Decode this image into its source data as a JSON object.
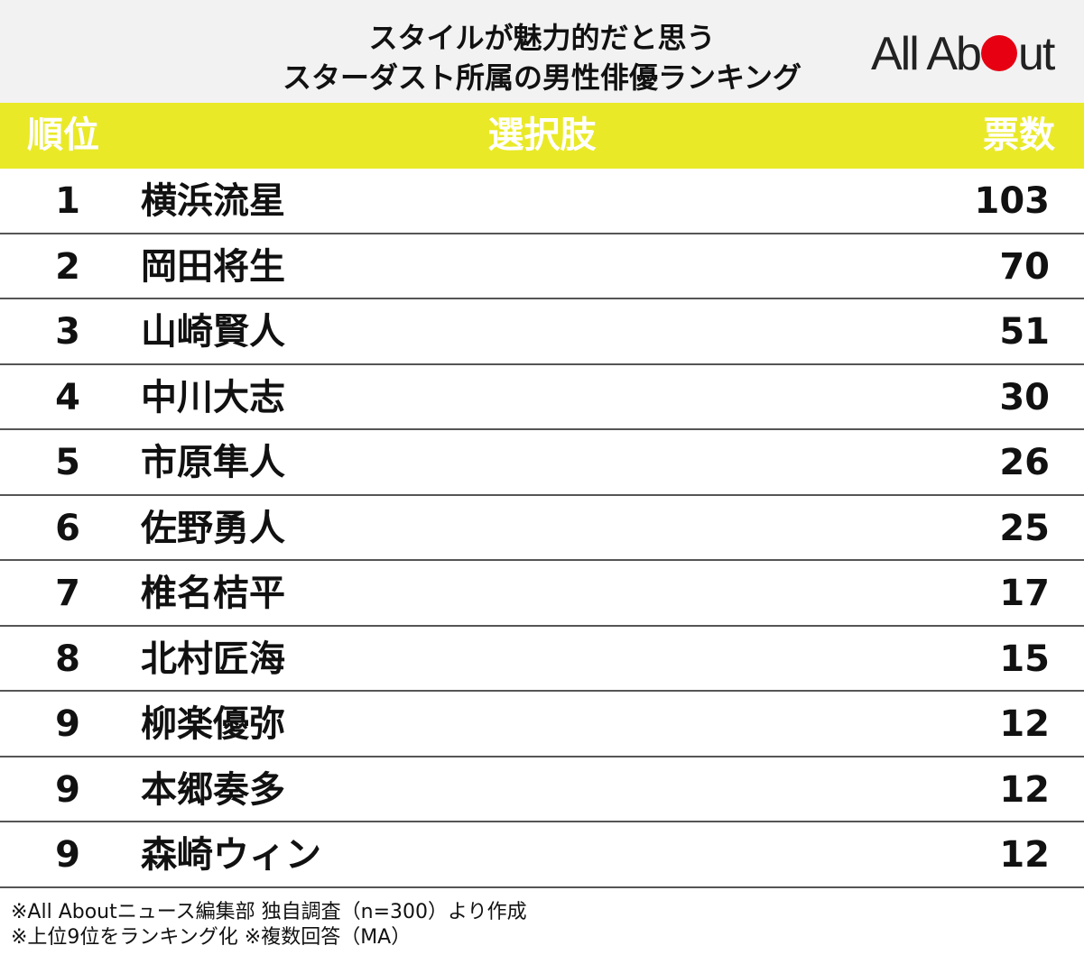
{
  "title": {
    "line1": "スタイルが魅力的だと思う",
    "line2": "スターダスト所属の男性俳優ランキング"
  },
  "logo": {
    "text_a": "All Ab",
    "text_b": "ut",
    "accent": "#e60012"
  },
  "colors": {
    "header_band": "#e9e928",
    "header_bg": "#f2f2f2"
  },
  "chart_data": {
    "type": "table",
    "columns": [
      "順位",
      "選択肢",
      "票数"
    ],
    "rows": [
      {
        "rank": "1",
        "name": "横浜流星",
        "votes": 103
      },
      {
        "rank": "2",
        "name": "岡田将生",
        "votes": 70
      },
      {
        "rank": "3",
        "name": "山崎賢人",
        "votes": 51
      },
      {
        "rank": "4",
        "name": "中川大志",
        "votes": 30
      },
      {
        "rank": "5",
        "name": "市原隼人",
        "votes": 26
      },
      {
        "rank": "6",
        "name": "佐野勇人",
        "votes": 25
      },
      {
        "rank": "7",
        "name": "椎名桔平",
        "votes": 17
      },
      {
        "rank": "8",
        "name": "北村匠海",
        "votes": 15
      },
      {
        "rank": "9",
        "name": "柳楽優弥",
        "votes": 12
      },
      {
        "rank": "9",
        "name": "本郷奏多",
        "votes": 12
      },
      {
        "rank": "9",
        "name": "森崎ウィン",
        "votes": 12
      }
    ]
  },
  "footer": {
    "line1": "※All Aboutニュース編集部 独自調査（n=300）より作成",
    "line2": "※上位9位をランキング化 ※複数回答（MA）"
  }
}
